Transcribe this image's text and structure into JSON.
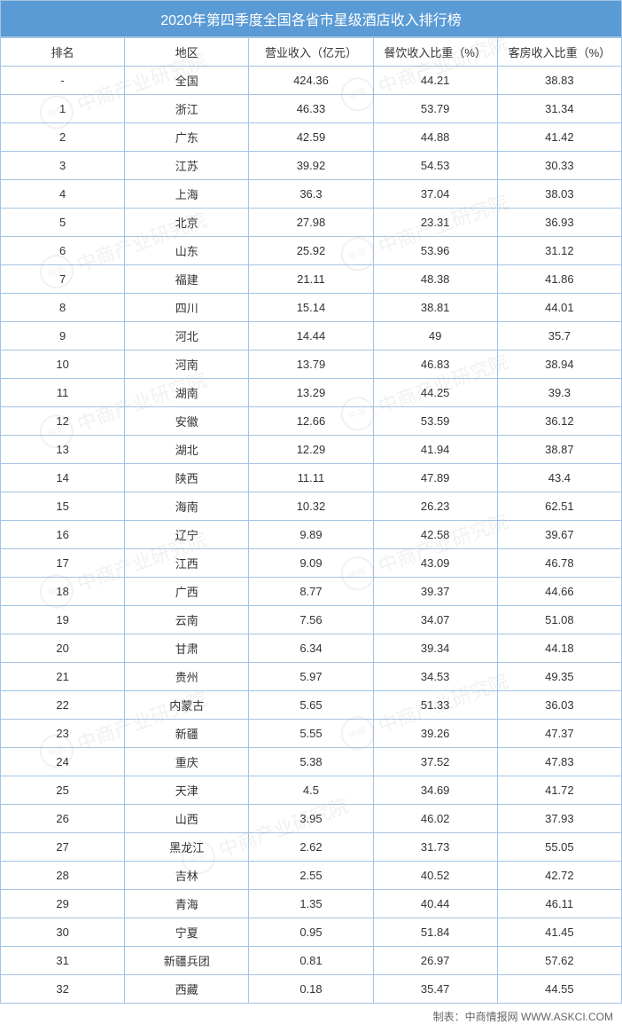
{
  "title": "2020年第四季度全国各省市星级酒店收入排行榜",
  "footer": "制表：中商情报网 WWW.ASKCI.COM",
  "watermark_text": "中商产业研究院",
  "table": {
    "type": "table",
    "header_bg": "#5b9bd5",
    "header_color": "#ffffff",
    "border_color": "#a6c4e4",
    "cell_bg": "#ffffff",
    "text_color": "#333333",
    "font_size": 13,
    "columns": [
      "排名",
      "地区",
      "营业收入（亿元）",
      "餐饮收入比重（%）",
      "客房收入比重（%）"
    ],
    "rows": [
      [
        "-",
        "全国",
        "424.36",
        "44.21",
        "38.83"
      ],
      [
        "1",
        "浙江",
        "46.33",
        "53.79",
        "31.34"
      ],
      [
        "2",
        "广东",
        "42.59",
        "44.88",
        "41.42"
      ],
      [
        "3",
        "江苏",
        "39.92",
        "54.53",
        "30.33"
      ],
      [
        "4",
        "上海",
        "36.3",
        "37.04",
        "38.03"
      ],
      [
        "5",
        "北京",
        "27.98",
        "23.31",
        "36.93"
      ],
      [
        "6",
        "山东",
        "25.92",
        "53.96",
        "31.12"
      ],
      [
        "7",
        "福建",
        "21.11",
        "48.38",
        "41.86"
      ],
      [
        "8",
        "四川",
        "15.14",
        "38.81",
        "44.01"
      ],
      [
        "9",
        "河北",
        "14.44",
        "49",
        "35.7"
      ],
      [
        "10",
        "河南",
        "13.79",
        "46.83",
        "38.94"
      ],
      [
        "11",
        "湖南",
        "13.29",
        "44.25",
        "39.3"
      ],
      [
        "12",
        "安徽",
        "12.66",
        "53.59",
        "36.12"
      ],
      [
        "13",
        "湖北",
        "12.29",
        "41.94",
        "38.87"
      ],
      [
        "14",
        "陕西",
        "11.11",
        "47.89",
        "43.4"
      ],
      [
        "15",
        "海南",
        "10.32",
        "26.23",
        "62.51"
      ],
      [
        "16",
        "辽宁",
        "9.89",
        "42.58",
        "39.67"
      ],
      [
        "17",
        "江西",
        "9.09",
        "43.09",
        "46.78"
      ],
      [
        "18",
        "广西",
        "8.77",
        "39.37",
        "44.66"
      ],
      [
        "19",
        "云南",
        "7.56",
        "34.07",
        "51.08"
      ],
      [
        "20",
        "甘肃",
        "6.34",
        "39.34",
        "44.18"
      ],
      [
        "21",
        "贵州",
        "5.97",
        "34.53",
        "49.35"
      ],
      [
        "22",
        "内蒙古",
        "5.65",
        "51.33",
        "36.03"
      ],
      [
        "23",
        "新疆",
        "5.55",
        "39.26",
        "47.37"
      ],
      [
        "24",
        "重庆",
        "5.38",
        "37.52",
        "47.83"
      ],
      [
        "25",
        "天津",
        "4.5",
        "34.69",
        "41.72"
      ],
      [
        "26",
        "山西",
        "3.95",
        "46.02",
        "37.93"
      ],
      [
        "27",
        "黑龙江",
        "2.62",
        "31.73",
        "55.05"
      ],
      [
        "28",
        "吉林",
        "2.55",
        "40.52",
        "42.72"
      ],
      [
        "29",
        "青海",
        "1.35",
        "40.44",
        "46.11"
      ],
      [
        "30",
        "宁夏",
        "0.95",
        "51.84",
        "41.45"
      ],
      [
        "31",
        "新疆兵团",
        "0.81",
        "26.97",
        "57.62"
      ],
      [
        "32",
        "西藏",
        "0.18",
        "35.47",
        "44.55"
      ]
    ]
  }
}
